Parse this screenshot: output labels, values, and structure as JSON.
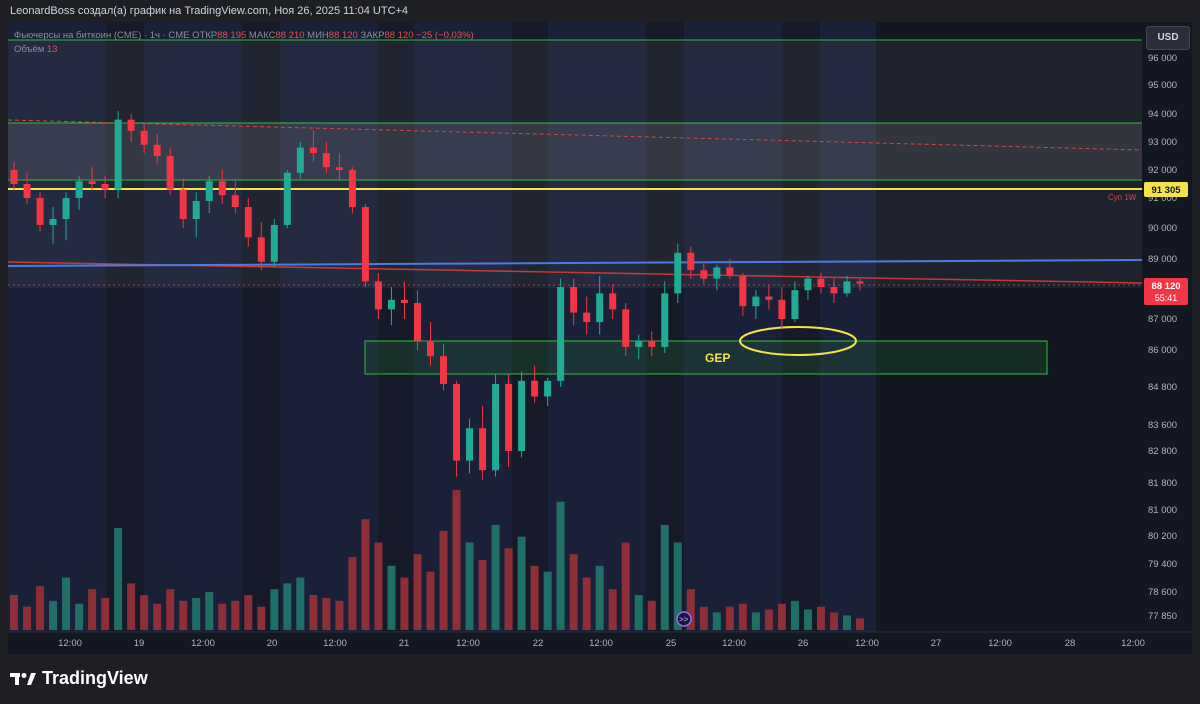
{
  "header": {
    "author_line": "LeonardBoss создал(а) график на TradingView.com, Ноя 26, 2025 11:04 UTC+4"
  },
  "legend": {
    "symbol": "Фьючерсы на биткоин (CME) · 1ч · CME",
    "open_label": "ОТКР",
    "open_value": "88 195",
    "high_label": "МАКС",
    "high_value": "88 210",
    "low_label": "МИН",
    "low_value": "88 120",
    "close_label": "ЗАКР",
    "close_value": "88 120",
    "change": "−25 (−0,03%)",
    "volume_label": "Объём",
    "volume_value": "13"
  },
  "toolbar": {
    "currency_button": "USD"
  },
  "annotations": {
    "gap_label": "GEP",
    "support_label": "Суп 1W"
  },
  "price_badges": {
    "level": "91 305",
    "last_price": "88 120",
    "countdown": "55:41"
  },
  "footer": {
    "brand": "TradingView"
  },
  "colors": {
    "up": "#22ab94",
    "down": "#f23645",
    "yellow_line": "#f5e24a",
    "blue_line": "#4a7be0",
    "green_zone": "#2fbf3a"
  },
  "chart_data": {
    "type": "candlestick",
    "symbol": "Фьючерсы на биткоин (CME)",
    "timeframe": "1ч",
    "y_ticks": [
      "96 000",
      "95 000",
      "94 000",
      "93 000",
      "92 000",
      "91 000",
      "90 000",
      "89 000",
      "88 000",
      "87 000",
      "86 000",
      "84 800",
      "83 600",
      "82 800",
      "81 800",
      "81 000",
      "80 200",
      "79 400",
      "78 600",
      "77 850"
    ],
    "x_ticks": [
      "12:00",
      "19",
      "12:00",
      "20",
      "12:00",
      "21",
      "12:00",
      "22",
      "12:00",
      "25",
      "12:00",
      "26",
      "12:00",
      "27",
      "12:00",
      "28",
      "12:00"
    ],
    "ohlc": [
      [
        92000,
        92300,
        91300,
        91500
      ],
      [
        91500,
        91900,
        90800,
        91000
      ],
      [
        91000,
        91200,
        89900,
        90100
      ],
      [
        90100,
        90700,
        89500,
        90300
      ],
      [
        90300,
        91200,
        89600,
        91000
      ],
      [
        91000,
        91800,
        90600,
        91600
      ],
      [
        91600,
        92100,
        91300,
        91500
      ],
      [
        91500,
        91800,
        91000,
        91300
      ],
      [
        91300,
        94100,
        91000,
        93800
      ],
      [
        93800,
        94000,
        93000,
        93400
      ],
      [
        93400,
        93700,
        92600,
        92900
      ],
      [
        92900,
        93300,
        92200,
        92500
      ],
      [
        92500,
        92800,
        91100,
        91300
      ],
      [
        91300,
        91700,
        90000,
        90300
      ],
      [
        90300,
        91200,
        89700,
        90900
      ],
      [
        90900,
        91800,
        90500,
        91600
      ],
      [
        91600,
        92000,
        90800,
        91100
      ],
      [
        91100,
        91600,
        90500,
        90700
      ],
      [
        90700,
        91000,
        89400,
        89700
      ],
      [
        89700,
        90200,
        88600,
        88900
      ],
      [
        88900,
        90300,
        88700,
        90100
      ],
      [
        90100,
        92000,
        90000,
        91900
      ],
      [
        91900,
        93000,
        91700,
        92800
      ],
      [
        92800,
        93400,
        92300,
        92600
      ],
      [
        92600,
        93000,
        91900,
        92100
      ],
      [
        92100,
        92600,
        91600,
        92000
      ],
      [
        92000,
        92100,
        90500,
        90700
      ],
      [
        90700,
        90800,
        88000,
        88200
      ],
      [
        88200,
        88500,
        87000,
        87300
      ],
      [
        87300,
        88000,
        86800,
        87600
      ],
      [
        87600,
        88200,
        87000,
        87500
      ],
      [
        87500,
        87900,
        86000,
        86300
      ],
      [
        86300,
        86900,
        85500,
        85800
      ],
      [
        85800,
        86200,
        84700,
        84900
      ],
      [
        84900,
        85000,
        82000,
        82500
      ],
      [
        82500,
        83800,
        82100,
        83500
      ],
      [
        83500,
        84200,
        81900,
        82200
      ],
      [
        82200,
        85200,
        82000,
        84900
      ],
      [
        84900,
        85200,
        82300,
        82800
      ],
      [
        82800,
        85300,
        82600,
        85000
      ],
      [
        85000,
        85500,
        84300,
        84500
      ],
      [
        84500,
        85100,
        84200,
        85000
      ],
      [
        85000,
        88300,
        84800,
        88000
      ],
      [
        88000,
        88300,
        86800,
        87200
      ],
      [
        87200,
        87700,
        86500,
        86900
      ],
      [
        86900,
        88400,
        86500,
        87800
      ],
      [
        87800,
        88100,
        87000,
        87300
      ],
      [
        87300,
        87500,
        85800,
        86100
      ],
      [
        86100,
        86500,
        85700,
        86300
      ],
      [
        86300,
        86600,
        85800,
        86100
      ],
      [
        86100,
        88200,
        85900,
        87800
      ],
      [
        87800,
        89500,
        87500,
        89200
      ],
      [
        89200,
        89400,
        88300,
        88600
      ],
      [
        88600,
        88900,
        88100,
        88300
      ],
      [
        88300,
        88800,
        87900,
        88700
      ],
      [
        88700,
        89000,
        88300,
        88400
      ],
      [
        88400,
        88500,
        87100,
        87400
      ],
      [
        87400,
        87900,
        87000,
        87700
      ],
      [
        87700,
        88100,
        87300,
        87600
      ],
      [
        87600,
        88000,
        86700,
        87000
      ],
      [
        87000,
        88200,
        86900,
        87900
      ],
      [
        87900,
        88400,
        87600,
        88300
      ],
      [
        88300,
        88500,
        87800,
        88000
      ],
      [
        88000,
        88300,
        87500,
        87800
      ],
      [
        87800,
        88400,
        87700,
        88200
      ],
      [
        88200,
        88300,
        87900,
        88120
      ]
    ],
    "volume": [
      12,
      8,
      15,
      10,
      18,
      9,
      14,
      11,
      35,
      16,
      12,
      9,
      14,
      10,
      11,
      13,
      9,
      10,
      12,
      8,
      14,
      16,
      18,
      12,
      11,
      10,
      25,
      38,
      30,
      22,
      18,
      26,
      20,
      34,
      48,
      30,
      24,
      36,
      28,
      32,
      22,
      20,
      44,
      26,
      18,
      22,
      14,
      30,
      12,
      10,
      36,
      30,
      14,
      8,
      6,
      8,
      9,
      6,
      7,
      9,
      10,
      7,
      8,
      6,
      5,
      4
    ],
    "horizontal_levels": [
      91305,
      92100,
      93700,
      95850
    ],
    "trend_lines": [
      "blue",
      "red",
      "dashed red"
    ],
    "gap_zone": {
      "label": "GEP",
      "from": 85400,
      "to": 86400
    },
    "grid": false
  }
}
